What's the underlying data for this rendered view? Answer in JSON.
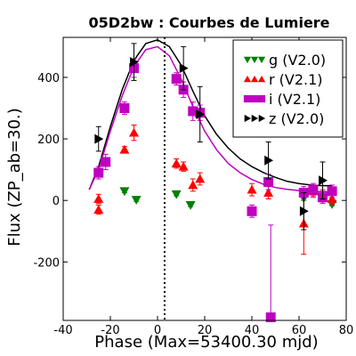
{
  "chart_data": {
    "type": "scatter",
    "title": "05D2bw : Courbes de Lumiere",
    "xlabel": "Phase (Max=53400.30 mjd)",
    "ylabel": "Flux (ZP_ab=30.)",
    "xlim": [
      -40,
      80
    ],
    "ylim": [
      -390,
      530
    ],
    "x_ticks": [
      "-40",
      "-20",
      "0",
      "20",
      "40",
      "60",
      "80"
    ],
    "y_ticks": [
      "-200",
      "0",
      "200",
      "400"
    ],
    "x_tick_values": [
      -40,
      -20,
      0,
      20,
      40,
      60,
      80
    ],
    "y_tick_values": [
      -200,
      0,
      200,
      400
    ],
    "grid": false,
    "legend_position": "top-right",
    "max_marker_x": 3,
    "series": [
      {
        "name": "g (V2.0)",
        "marker": "triangle-down",
        "color": "#008000",
        "points": [
          {
            "x": -14,
            "y": 30,
            "err": 5
          },
          {
            "x": -9,
            "y": 2,
            "err": 5
          },
          {
            "x": 8,
            "y": 20,
            "err": 5
          },
          {
            "x": 14,
            "y": -15,
            "err": 5
          },
          {
            "x": 62,
            "y": 8,
            "err": 8
          },
          {
            "x": 74,
            "y": -12,
            "err": 5
          }
        ]
      },
      {
        "name": "r (V2.1)",
        "marker": "triangle-up",
        "color": "#ff0000",
        "points": [
          {
            "x": -25,
            "y": -30,
            "err": 15
          },
          {
            "x": -25,
            "y": 5,
            "err": 15
          },
          {
            "x": -14,
            "y": 165,
            "err": 10
          },
          {
            "x": -10,
            "y": 220,
            "err": 25
          },
          {
            "x": 8,
            "y": 120,
            "err": 15
          },
          {
            "x": 11,
            "y": 110,
            "err": 15
          },
          {
            "x": 15,
            "y": 50,
            "err": 20
          },
          {
            "x": 18,
            "y": 70,
            "err": 20
          },
          {
            "x": 40,
            "y": 35,
            "err": 20
          },
          {
            "x": 47,
            "y": 25,
            "err": 20
          },
          {
            "x": 62,
            "y": -75,
            "err": 100
          },
          {
            "x": 66,
            "y": 30,
            "err": 20
          },
          {
            "x": 70,
            "y": 15,
            "err": 20
          },
          {
            "x": 74,
            "y": 5,
            "err": 20
          }
        ]
      },
      {
        "name": "i (V2.1)",
        "marker": "square",
        "color": "#bf00bf",
        "points": [
          {
            "x": -25,
            "y": 90,
            "err": 20
          },
          {
            "x": -22,
            "y": 125,
            "err": 25
          },
          {
            "x": -14,
            "y": 300,
            "err": 20
          },
          {
            "x": -10,
            "y": 430,
            "err": 30
          },
          {
            "x": 8,
            "y": 395,
            "err": 20
          },
          {
            "x": 11,
            "y": 360,
            "err": 25
          },
          {
            "x": 15,
            "y": 290,
            "err": 30
          },
          {
            "x": 18,
            "y": 285,
            "err": 25
          },
          {
            "x": 40,
            "y": -35,
            "err": 20
          },
          {
            "x": 47,
            "y": 60,
            "err": 25
          },
          {
            "x": 48,
            "y": -380,
            "err": 300
          },
          {
            "x": 62,
            "y": 25,
            "err": 20
          },
          {
            "x": 66,
            "y": 35,
            "err": 20
          },
          {
            "x": 70,
            "y": 10,
            "err": 20
          },
          {
            "x": 74,
            "y": 30,
            "err": 20
          }
        ]
      },
      {
        "name": "z (V2.0)",
        "marker": "triangle-right",
        "color": "#000000",
        "points": [
          {
            "x": -25,
            "y": 200,
            "err": 40
          },
          {
            "x": -10,
            "y": 450,
            "err": 60
          },
          {
            "x": 11,
            "y": 430,
            "err": 70
          },
          {
            "x": 18,
            "y": 280,
            "err": 90
          },
          {
            "x": 47,
            "y": 130,
            "err": 60
          },
          {
            "x": 62,
            "y": -35,
            "err": 60
          },
          {
            "x": 70,
            "y": 65,
            "err": 60
          }
        ]
      }
    ],
    "curves": [
      {
        "color": "#000000",
        "points": [
          [
            -29,
            35
          ],
          [
            -25,
            110
          ],
          [
            -20,
            240
          ],
          [
            -15,
            360
          ],
          [
            -10,
            455
          ],
          [
            -5,
            510
          ],
          [
            0,
            522
          ],
          [
            5,
            500
          ],
          [
            10,
            440
          ],
          [
            15,
            355
          ],
          [
            20,
            275
          ],
          [
            25,
            215
          ],
          [
            30,
            170
          ],
          [
            35,
            135
          ],
          [
            40,
            110
          ],
          [
            45,
            90
          ],
          [
            50,
            75
          ],
          [
            55,
            62
          ],
          [
            60,
            55
          ],
          [
            65,
            50
          ],
          [
            70,
            48
          ],
          [
            74,
            48
          ]
        ]
      },
      {
        "color": "#bf00bf",
        "points": [
          [
            -29,
            35
          ],
          [
            -25,
            100
          ],
          [
            -20,
            225
          ],
          [
            -15,
            340
          ],
          [
            -10,
            435
          ],
          [
            -5,
            490
          ],
          [
            0,
            500
          ],
          [
            5,
            470
          ],
          [
            10,
            395
          ],
          [
            15,
            305
          ],
          [
            20,
            225
          ],
          [
            25,
            165
          ],
          [
            30,
            120
          ],
          [
            35,
            90
          ],
          [
            40,
            68
          ],
          [
            45,
            52
          ],
          [
            50,
            42
          ],
          [
            55,
            36
          ],
          [
            60,
            32
          ],
          [
            65,
            30
          ],
          [
            70,
            28
          ],
          [
            74,
            28
          ]
        ]
      }
    ]
  }
}
